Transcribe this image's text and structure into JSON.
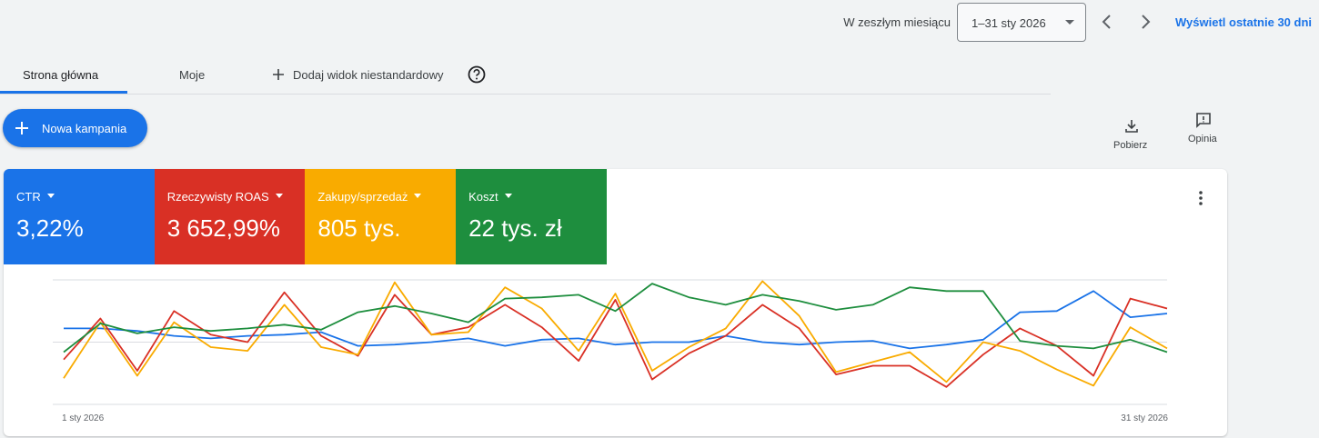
{
  "header": {
    "period_label": "W zeszłym miesiącu",
    "date_range": "1–31 sty 2026",
    "link": "Wyświetl ostatnie 30 dni"
  },
  "tabs": [
    "Strona główna",
    "Moje",
    "Dodaj widok niestandardowy"
  ],
  "new_campaign": "Nowa kampania",
  "actions": [
    "Pobierz",
    "Opinia"
  ],
  "scorecards": [
    "3,22%",
    "3 652,99%",
    "805 tys.",
    "22 tys. zł"
  ],
  "chart_data": {
    "type": "line",
    "categories": [
      "1 sty 2026",
      null,
      null,
      null,
      null,
      null,
      null,
      null,
      null,
      null,
      null,
      null,
      null,
      null,
      null,
      null,
      null,
      null,
      null,
      null,
      null,
      null,
      null,
      null,
      null,
      null,
      null,
      null,
      null,
      null,
      "31 sty 2026"
    ],
    "ylim": [
      0,
      100
    ],
    "yticks": [
      0,
      50,
      100
    ],
    "grid": true,
    "series": [
      {
        "name": "CTR",
        "color": "#1a73e8",
        "values": [
          61,
          61,
          59,
          55,
          53,
          55,
          56,
          58,
          47,
          48,
          50,
          53,
          47,
          52,
          53,
          48,
          50,
          50,
          55,
          50,
          48,
          50,
          51,
          45,
          48,
          52,
          74,
          75,
          91,
          70,
          73
        ]
      },
      {
        "name": "Rzeczywisty ROAS",
        "color": "#d93025",
        "values": [
          36,
          69,
          27,
          75,
          56,
          50,
          90,
          55,
          39,
          88,
          56,
          62,
          80,
          62,
          35,
          84,
          20,
          41,
          55,
          80,
          61,
          24,
          31,
          31,
          14,
          40,
          61,
          47,
          23,
          85,
          77
        ]
      },
      {
        "name": "Zakupy/sprzedaż",
        "color": "#f9ab00",
        "values": [
          21,
          66,
          23,
          66,
          46,
          43,
          80,
          46,
          40,
          98,
          56,
          58,
          94,
          77,
          43,
          89,
          27,
          46,
          61,
          99,
          71,
          26,
          34,
          42,
          18,
          50,
          43,
          28,
          15,
          62,
          45
        ]
      },
      {
        "name": "Koszt",
        "color": "#1e8e3e",
        "values": [
          42,
          65,
          57,
          62,
          59,
          61,
          64,
          60,
          74,
          79,
          73,
          66,
          85,
          86,
          88,
          75,
          97,
          86,
          80,
          88,
          83,
          76,
          80,
          94,
          91,
          91,
          51,
          47,
          45,
          52,
          42
        ]
      }
    ]
  }
}
